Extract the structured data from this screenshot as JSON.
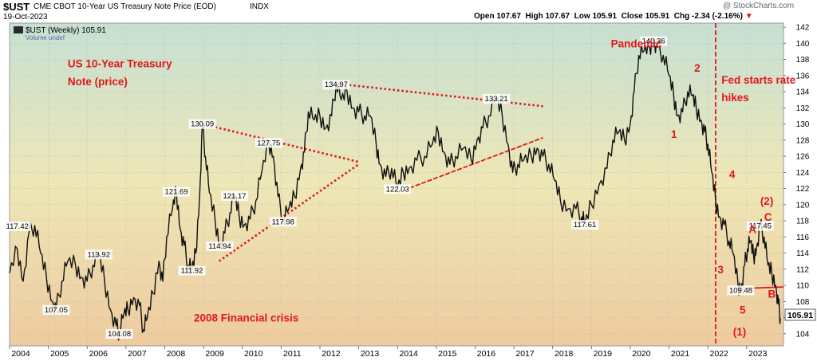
{
  "header": {
    "symbol": "$UST",
    "description": "CME CBOT 10-Year US Treasury Note Price (EOD)",
    "exchange": "INDX",
    "date": "19-Oct-2023",
    "watermark": "@ StockCharts.com",
    "quote": {
      "open_label": "Open",
      "open": "107.67",
      "high_label": "High",
      "high": "107.67",
      "low_label": "Low",
      "low": "105.91",
      "close_label": "Close",
      "close": "105.91",
      "chg_label": "Chg",
      "chg": "-2.34 (-2.16%)"
    }
  },
  "legend": {
    "series_label": "$UST (Weekly) 105.91",
    "volume_label": "Volume undef"
  },
  "colors": {
    "bg_top": "#c6e0d3",
    "bg_mid": "#eee7b6",
    "bg_bottom": "#eecb9f",
    "price_line": "#111111",
    "annotation_red": "#e0171c",
    "label_box": "#ffffff"
  },
  "chart_data": {
    "type": "line",
    "title": "US 10-Year Treasury Note (price)",
    "ylim": [
      102.5,
      142.5
    ],
    "xlim": [
      2004.0,
      2023.95
    ],
    "y_ticks": [
      104,
      106,
      108,
      110,
      112,
      114,
      116,
      118,
      120,
      122,
      124,
      126,
      128,
      130,
      132,
      134,
      136,
      138,
      140,
      142
    ],
    "x_ticks": [
      2004,
      2005,
      2006,
      2007,
      2008,
      2009,
      2010,
      2011,
      2012,
      2013,
      2014,
      2015,
      2016,
      2017,
      2018,
      2019,
      2020,
      2021,
      2022,
      2023
    ],
    "last_value": 105.91,
    "series": [
      {
        "values": [
          [
            2004.0,
            111.5
          ],
          [
            2004.2,
            114.5
          ],
          [
            2004.35,
            110.5
          ],
          [
            2004.5,
            116.5
          ],
          [
            2004.65,
            117.42
          ],
          [
            2004.8,
            114.0
          ],
          [
            2004.95,
            111.0
          ],
          [
            2005.1,
            108.0
          ],
          [
            2005.2,
            107.05
          ],
          [
            2005.35,
            110.5
          ],
          [
            2005.5,
            113.0
          ],
          [
            2005.7,
            112.5
          ],
          [
            2005.85,
            111.0
          ],
          [
            2006.0,
            110.5
          ],
          [
            2006.15,
            112.5
          ],
          [
            2006.3,
            113.92
          ],
          [
            2006.45,
            110.5
          ],
          [
            2006.6,
            107.0
          ],
          [
            2006.75,
            105.0
          ],
          [
            2006.83,
            104.08
          ],
          [
            2006.95,
            106.5
          ],
          [
            2007.05,
            107.0
          ],
          [
            2007.2,
            108.5
          ],
          [
            2007.35,
            107.5
          ],
          [
            2007.45,
            104.5
          ],
          [
            2007.55,
            106.0
          ],
          [
            2007.7,
            109.0
          ],
          [
            2007.85,
            113.0
          ],
          [
            2007.95,
            110.5
          ],
          [
            2008.05,
            116.0
          ],
          [
            2008.2,
            119.5
          ],
          [
            2008.3,
            121.69
          ],
          [
            2008.4,
            117.0
          ],
          [
            2008.5,
            115.0
          ],
          [
            2008.6,
            112.5
          ],
          [
            2008.7,
            111.92
          ],
          [
            2008.8,
            114.0
          ],
          [
            2008.9,
            121.0
          ],
          [
            2008.97,
            130.09
          ],
          [
            2009.05,
            126.0
          ],
          [
            2009.15,
            121.5
          ],
          [
            2009.3,
            118.0
          ],
          [
            2009.42,
            114.94
          ],
          [
            2009.55,
            116.5
          ],
          [
            2009.68,
            119.0
          ],
          [
            2009.8,
            121.17
          ],
          [
            2009.92,
            118.5
          ],
          [
            2010.05,
            117.5
          ],
          [
            2010.2,
            118.2
          ],
          [
            2010.35,
            120.5
          ],
          [
            2010.5,
            124.0
          ],
          [
            2010.68,
            127.75
          ],
          [
            2010.8,
            126.0
          ],
          [
            2010.92,
            121.0
          ],
          [
            2011.05,
            117.98
          ],
          [
            2011.2,
            119.5
          ],
          [
            2011.35,
            121.0
          ],
          [
            2011.5,
            124.5
          ],
          [
            2011.6,
            126.5
          ],
          [
            2011.7,
            131.5
          ],
          [
            2011.85,
            130.5
          ],
          [
            2012.0,
            131.0
          ],
          [
            2012.15,
            129.5
          ],
          [
            2012.3,
            131.0
          ],
          [
            2012.42,
            134.97
          ],
          [
            2012.55,
            133.0
          ],
          [
            2012.7,
            134.0
          ],
          [
            2012.85,
            132.0
          ],
          [
            2013.0,
            131.5
          ],
          [
            2013.15,
            131.0
          ],
          [
            2013.3,
            131.0
          ],
          [
            2013.45,
            127.5
          ],
          [
            2013.55,
            125.0
          ],
          [
            2013.7,
            123.5
          ],
          [
            2013.85,
            124.5
          ],
          [
            2014.0,
            122.03
          ],
          [
            2014.15,
            124.0
          ],
          [
            2014.3,
            124.5
          ],
          [
            2014.5,
            125.5
          ],
          [
            2014.7,
            126.0
          ],
          [
            2014.9,
            127.5
          ],
          [
            2015.05,
            129.0
          ],
          [
            2015.2,
            126.5
          ],
          [
            2015.35,
            125.0
          ],
          [
            2015.5,
            126.0
          ],
          [
            2015.7,
            127.0
          ],
          [
            2015.9,
            125.5
          ],
          [
            2016.05,
            128.0
          ],
          [
            2016.2,
            129.5
          ],
          [
            2016.35,
            131.0
          ],
          [
            2016.55,
            133.21
          ],
          [
            2016.7,
            131.0
          ],
          [
            2016.85,
            127.5
          ],
          [
            2016.97,
            124.0
          ],
          [
            2017.1,
            125.0
          ],
          [
            2017.25,
            125.5
          ],
          [
            2017.45,
            126.0
          ],
          [
            2017.6,
            127.0
          ],
          [
            2017.75,
            126.0
          ],
          [
            2017.9,
            125.0
          ],
          [
            2018.05,
            123.0
          ],
          [
            2018.2,
            120.5
          ],
          [
            2018.4,
            119.5
          ],
          [
            2018.6,
            119.5
          ],
          [
            2018.75,
            118.5
          ],
          [
            2018.83,
            117.61
          ],
          [
            2019.0,
            120.0
          ],
          [
            2019.2,
            122.5
          ],
          [
            2019.4,
            124.5
          ],
          [
            2019.55,
            128.0
          ],
          [
            2019.7,
            129.0
          ],
          [
            2019.85,
            128.0
          ],
          [
            2020.0,
            130.0
          ],
          [
            2020.1,
            134.0
          ],
          [
            2020.22,
            138.5
          ],
          [
            2020.35,
            139.0
          ],
          [
            2020.5,
            139.5
          ],
          [
            2020.6,
            140.36
          ],
          [
            2020.7,
            139.5
          ],
          [
            2020.85,
            138.5
          ],
          [
            2021.0,
            136.0
          ],
          [
            2021.12,
            133.5
          ],
          [
            2021.22,
            131.0
          ],
          [
            2021.35,
            131.5
          ],
          [
            2021.48,
            134.0
          ],
          [
            2021.6,
            133.5
          ],
          [
            2021.7,
            132.0
          ],
          [
            2021.82,
            130.5
          ],
          [
            2021.92,
            129.0
          ],
          [
            2022.0,
            127.5
          ],
          [
            2022.1,
            124.0
          ],
          [
            2022.2,
            120.5
          ],
          [
            2022.3,
            118.5
          ],
          [
            2022.42,
            117.5
          ],
          [
            2022.55,
            115.5
          ],
          [
            2022.65,
            114.0
          ],
          [
            2022.78,
            110.0
          ],
          [
            2022.85,
            109.48
          ],
          [
            2022.95,
            112.5
          ],
          [
            2023.02,
            114.5
          ],
          [
            2023.1,
            115.5
          ],
          [
            2023.18,
            113.5
          ],
          [
            2023.25,
            114.5
          ],
          [
            2023.35,
            117.45
          ],
          [
            2023.45,
            116.0
          ],
          [
            2023.55,
            112.5
          ],
          [
            2023.65,
            111.5
          ],
          [
            2023.75,
            110.0
          ],
          [
            2023.82,
            107.67
          ],
          [
            2023.87,
            105.91
          ]
        ]
      }
    ],
    "point_labels": [
      {
        "x": 2004.2,
        "y": 117.42,
        "text": "117.42"
      },
      {
        "x": 2005.2,
        "y": 107.05,
        "text": "107.05"
      },
      {
        "x": 2006.3,
        "y": 113.92,
        "text": "113.92"
      },
      {
        "x": 2006.83,
        "y": 104.08,
        "text": "104.08"
      },
      {
        "x": 2008.3,
        "y": 121.69,
        "text": "121.69"
      },
      {
        "x": 2008.7,
        "y": 111.92,
        "text": "111.92"
      },
      {
        "x": 2008.97,
        "y": 130.09,
        "text": "130.09"
      },
      {
        "x": 2009.42,
        "y": 114.94,
        "text": "114.94"
      },
      {
        "x": 2009.8,
        "y": 121.17,
        "text": "121.17"
      },
      {
        "x": 2010.68,
        "y": 127.75,
        "text": "127.75"
      },
      {
        "x": 2011.05,
        "y": 117.98,
        "text": "117.98"
      },
      {
        "x": 2012.42,
        "y": 134.97,
        "text": "134.97"
      },
      {
        "x": 2014.0,
        "y": 122.03,
        "text": "122.03"
      },
      {
        "x": 2016.55,
        "y": 133.21,
        "text": "133.21"
      },
      {
        "x": 2018.83,
        "y": 117.61,
        "text": "117.61"
      },
      {
        "x": 2020.6,
        "y": 140.36,
        "text": "140.36"
      },
      {
        "x": 2022.85,
        "y": 109.48,
        "text": "109.48"
      },
      {
        "x": 2023.35,
        "y": 117.45,
        "text": "117.45"
      }
    ],
    "annotations": [
      {
        "text": "US 10-Year Treasury",
        "x": 2005.5,
        "y": 137.0
      },
      {
        "text": "Note (price)",
        "x": 2005.5,
        "y": 134.8
      },
      {
        "text": "2008 Financial crisis",
        "x": 2008.75,
        "y": 105.5
      },
      {
        "text": "Pandemic",
        "x": 2019.5,
        "y": 139.5
      },
      {
        "text": "Fed starts rate",
        "x": 2022.35,
        "y": 135.0
      },
      {
        "text": "hikes",
        "x": 2022.35,
        "y": 132.8
      },
      {
        "text": "1",
        "x": 2021.05,
        "y": 128.3
      },
      {
        "text": "2",
        "x": 2021.65,
        "y": 136.5
      },
      {
        "text": "3",
        "x": 2022.25,
        "y": 111.5
      },
      {
        "text": "4",
        "x": 2022.55,
        "y": 123.3
      },
      {
        "text": "5",
        "x": 2022.82,
        "y": 106.5
      },
      {
        "text": "(1)",
        "x": 2022.65,
        "y": 103.8
      },
      {
        "text": "(2)",
        "x": 2023.35,
        "y": 120.0
      },
      {
        "text": "A",
        "x": 2023.05,
        "y": 116.5
      },
      {
        "text": "B",
        "x": 2023.55,
        "y": 108.5
      },
      {
        "text": "C",
        "x": 2023.45,
        "y": 118.0
      }
    ],
    "trend_lines": [
      {
        "x1": 2008.97,
        "y1": 130.0,
        "x2": 2013.0,
        "y2": 125.3,
        "style": "dotted"
      },
      {
        "x1": 2009.4,
        "y1": 113.0,
        "x2": 2013.0,
        "y2": 125.0,
        "style": "dotted"
      },
      {
        "x1": 2012.42,
        "y1": 135.0,
        "x2": 2017.75,
        "y2": 132.2,
        "style": "dotted"
      },
      {
        "x1": 2014.0,
        "y1": 121.5,
        "x2": 2017.75,
        "y2": 128.3,
        "style": "dashed"
      },
      {
        "x1": 2022.8,
        "y1": 109.6,
        "x2": 2023.95,
        "y2": 109.8,
        "style": "solid"
      }
    ],
    "vertical_lines": [
      {
        "x": 2022.2,
        "style": "dashed"
      }
    ]
  }
}
